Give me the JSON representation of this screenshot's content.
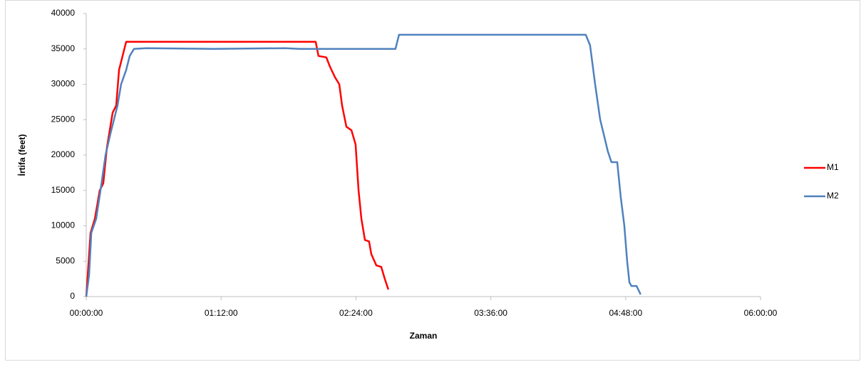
{
  "chart_data": {
    "type": "line",
    "x_label": "Zaman",
    "y_label": "İrtifa (feet)",
    "xlim": [
      0,
      360
    ],
    "xticks": [
      {
        "value": 0,
        "label": "00:00:00"
      },
      {
        "value": 72,
        "label": "01:12:00"
      },
      {
        "value": 144,
        "label": "02:24:00"
      },
      {
        "value": 216,
        "label": "03:36:00"
      },
      {
        "value": 288,
        "label": "04:48:00"
      },
      {
        "value": 360,
        "label": "06:00:00"
      }
    ],
    "ylim": [
      0,
      40000
    ],
    "yticks": [
      0,
      5000,
      10000,
      15000,
      20000,
      25000,
      30000,
      35000,
      40000
    ],
    "grid": false,
    "legend": "right",
    "series": [
      {
        "name": "M1",
        "color": "#ff0000",
        "x": [
          0,
          0.8,
          2.3,
          4.6,
          7.2,
          9.1,
          11,
          14.1,
          16,
          17.5,
          19.4,
          21.3,
          122.5,
          124,
          128.2,
          130.1,
          132.8,
          135.1,
          136.6,
          138.9,
          141.6,
          143.8,
          145.4,
          146.9,
          148.8,
          151,
          152.2,
          154.9,
          157.5,
          159.4,
          161.3
        ],
        "values": [
          0,
          3000,
          9000,
          11000,
          15000,
          16000,
          21000,
          26000,
          27000,
          32000,
          34000,
          36000,
          36000,
          34000,
          33800,
          32500,
          31000,
          30000,
          27000,
          24000,
          23500,
          21500,
          15000,
          11000,
          8000,
          7800,
          6000,
          4400,
          4200,
          2500,
          1000
        ]
      },
      {
        "name": "M2",
        "color": "#4f81bd",
        "x": [
          0,
          1.5,
          2.7,
          5.3,
          7.6,
          10.3,
          12.9,
          16.7,
          18.6,
          21.3,
          23.2,
          25.5,
          32,
          68.1,
          106.2,
          113.8,
          165.1,
          167,
          266.7,
          269,
          271.7,
          274.4,
          276.7,
          278.5,
          280.4,
          283.5,
          285.4,
          287.3,
          288.8,
          290,
          291.1,
          293.8,
          296
        ],
        "values": [
          0,
          3000,
          9000,
          11000,
          15000,
          20000,
          23000,
          27000,
          30000,
          32000,
          34000,
          35000,
          35100,
          35000,
          35100,
          35000,
          35000,
          37000,
          37000,
          35500,
          30000,
          25000,
          22500,
          20500,
          19000,
          19000,
          14000,
          10000,
          5000,
          2000,
          1500,
          1500,
          300
        ]
      }
    ]
  }
}
